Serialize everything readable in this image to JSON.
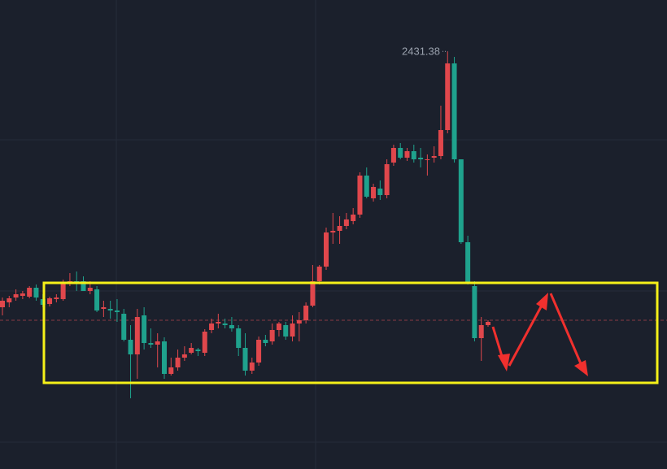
{
  "chart_data": {
    "type": "candlestick",
    "open": [
      2399.9,
      2400.5,
      2401.1,
      2401.3,
      2401.2,
      2402.3,
      2400.9,
      2400.3,
      2400.9,
      2400.9,
      2402.9,
      2403.1,
      2403.1,
      2401.9,
      2402.1,
      2399.7,
      2399.7,
      2399.5,
      2399.1,
      2395.9,
      2394.1,
      2398.9,
      2395.5,
      2395.3,
      2395.7,
      2391.7,
      2392.5,
      2393.7,
      2394.3,
      2394.7,
      2394.3,
      2397.1,
      2397.9,
      2397.9,
      2397.7,
      2397.3,
      2394.9,
      2392.1,
      2393.1,
      2395.9,
      2395.7,
      2397.1,
      2397.7,
      2396.3,
      2397.9,
      2398.3,
      2400.1,
      2403.1,
      2404.9,
      2409.1,
      2409.3,
      2409.9,
      2410.5,
      2411.3,
      2416.1,
      2413.3,
      2414.5,
      2413.7,
      2417.7,
      2419.5,
      2418.3,
      2419.1,
      2418.3,
      2418.1,
      2418.3,
      2418.5,
      2421.7,
      2429.9,
      2418.1,
      2407.9,
      2402.5,
      2396.1,
      2397.7
    ],
    "high": [
      2401.1,
      2401.3,
      2402.1,
      2401.9,
      2402.5,
      2402.7,
      2401.5,
      2401.2,
      2401.5,
      2403.3,
      2404.1,
      2404.3,
      2403.7,
      2403.1,
      2402.5,
      2400.7,
      2400.7,
      2400.9,
      2399.7,
      2397.7,
      2399.7,
      2399.9,
      2397.3,
      2396.7,
      2396.2,
      2393.7,
      2394.7,
      2395.1,
      2395.5,
      2394.9,
      2397.2,
      2398.5,
      2399.1,
      2398.5,
      2398.7,
      2397.7,
      2396.7,
      2393.7,
      2396.3,
      2396.5,
      2397.9,
      2398.1,
      2398.1,
      2398.9,
      2399.3,
      2400.5,
      2405.1,
      2405.1,
      2409.7,
      2411.5,
      2411.1,
      2411.5,
      2412.1,
      2416.5,
      2417.1,
      2415.1,
      2415.5,
      2418.1,
      2419.9,
      2420.1,
      2419.5,
      2419.9,
      2419.5,
      2418.7,
      2419.7,
      2424.7,
      2431.38,
      2430.7,
      2418.1,
      2408.7,
      2403.1,
      2398.7,
      2398.3
    ],
    "low": [
      2398.9,
      2399.9,
      2400.7,
      2400.9,
      2401.0,
      2400.7,
      2399.9,
      2400.0,
      2400.5,
      2400.7,
      2402.5,
      2401.9,
      2401.9,
      2401.5,
      2399.3,
      2398.7,
      2398.5,
      2398.1,
      2395.7,
      2388.7,
      2391.1,
      2394.7,
      2394.9,
      2392.5,
      2391.1,
      2391.5,
      2392.1,
      2393.3,
      2394.1,
      2393.9,
      2393.9,
      2396.7,
      2397.3,
      2397.3,
      2396.9,
      2393.9,
      2391.5,
      2391.7,
      2392.7,
      2395.1,
      2395.3,
      2396.3,
      2395.9,
      2395.7,
      2395.7,
      2397.9,
      2399.9,
      2402.7,
      2404.5,
      2407.7,
      2407.7,
      2409.5,
      2410.1,
      2410.9,
      2413.3,
      2412.9,
      2413.1,
      2413.3,
      2417.3,
      2418.1,
      2417.9,
      2417.7,
      2417.1,
      2416.1,
      2417.7,
      2418.1,
      2421.3,
      2417.7,
      2407.7,
      2402.7,
      2395.7,
      2393.3,
      2397.5
    ],
    "close": [
      2400.7,
      2401.0,
      2401.5,
      2401.6,
      2402.3,
      2401.1,
      2400.2,
      2401.0,
      2401.1,
      2402.9,
      2403.1,
      2402.9,
      2401.9,
      2402.3,
      2399.5,
      2399.9,
      2399.5,
      2399.3,
      2395.9,
      2394.1,
      2398.7,
      2395.5,
      2395.3,
      2395.7,
      2391.7,
      2392.5,
      2393.7,
      2394.1,
      2394.9,
      2394.5,
      2396.9,
      2397.9,
      2398.1,
      2397.7,
      2397.3,
      2394.9,
      2392.1,
      2393.1,
      2395.9,
      2395.5,
      2397.1,
      2397.9,
      2396.3,
      2397.9,
      2398.3,
      2400.1,
      2403.1,
      2404.9,
      2409.1,
      2409.3,
      2409.9,
      2410.7,
      2411.3,
      2416.1,
      2413.5,
      2414.7,
      2413.7,
      2417.5,
      2419.5,
      2418.3,
      2419.1,
      2418.1,
      2418.1,
      2418.1,
      2418.5,
      2421.7,
      2429.9,
      2418.1,
      2407.9,
      2402.9,
      2396.1,
      2397.7,
      2398.1
    ],
    "up_color": "#e0474c",
    "down_color": "#1fa28d",
    "ylim": [
      2380,
      2437.7
    ],
    "max_high_label": 2431.38
  }
}
